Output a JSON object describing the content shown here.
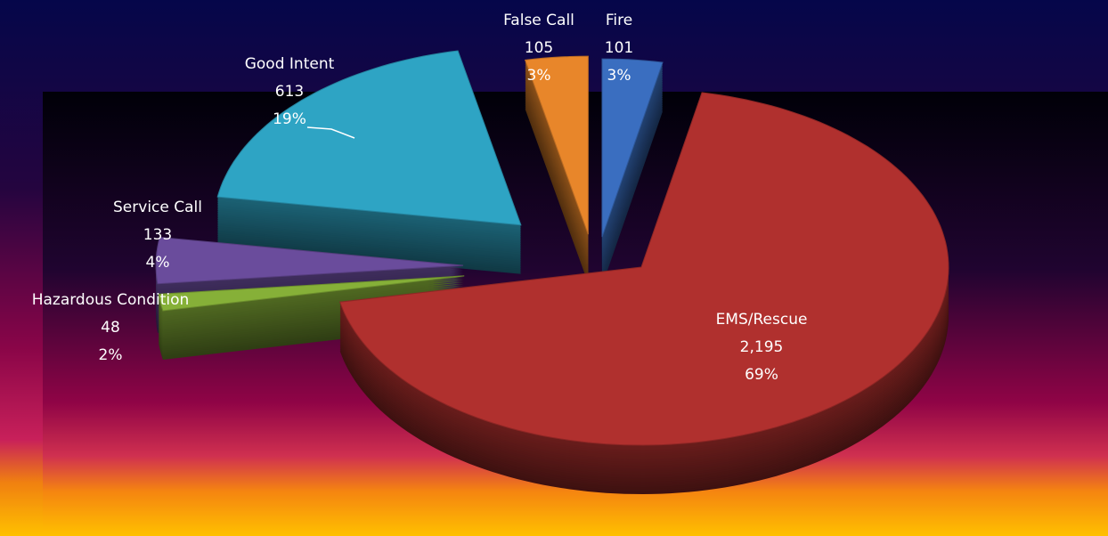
{
  "chart_data": {
    "type": "pie",
    "categories": [
      "Fire",
      "EMS/Rescue",
      "Hazardous Condition",
      "Service Call",
      "Good Intent",
      "False Call"
    ],
    "values": [
      101,
      2195,
      48,
      133,
      613,
      105
    ],
    "value_labels": [
      "101",
      "2,195",
      "48",
      "133",
      "613",
      "105"
    ],
    "percents": [
      3,
      69,
      2,
      4,
      19,
      3
    ],
    "percent_labels": [
      "3%",
      "69%",
      "2%",
      "4%",
      "19%",
      "3%"
    ],
    "colors": [
      "#3a6ec0",
      "#b0302e",
      "#86b038",
      "#6a4c9c",
      "#2ea4c4",
      "#e8862a"
    ]
  }
}
